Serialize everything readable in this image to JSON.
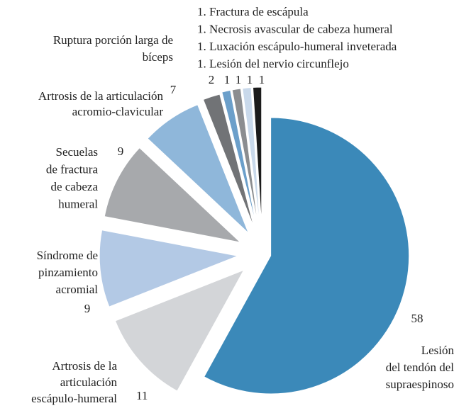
{
  "chart_data": {
    "type": "pie",
    "categories": [
      "Lesión\ndel tendón del\nsupraespinoso",
      "Artrosis de la\narticulación\nescápulo-humeral",
      "Síndrome de\npinzamiento\nacromial",
      "Secuelas\nde fractura\nde cabeza\nhumeral",
      "Artrosis de la articulación\nacromio-clavicular",
      "Ruptura porción larga de\nbíceps",
      null,
      null,
      null,
      null
    ],
    "values": [
      58,
      11,
      9,
      9,
      7,
      2,
      1,
      1,
      1,
      1
    ],
    "colors": [
      "#3b89b9",
      "#d3d5d8",
      "#b3c9e5",
      "#a7a9ac",
      "#8fb7da",
      "#717376",
      "#6b9fca",
      "#8b8d90",
      "#c9d9eb",
      "#1b1b1b"
    ],
    "annotations": [
      "1. Fractura de escápula",
      "1. Necrosis avascular de cabeza humeral",
      "1. Luxación escápulo-humeral inveterada",
      "1. Lesión del nervio circunflejo"
    ]
  }
}
